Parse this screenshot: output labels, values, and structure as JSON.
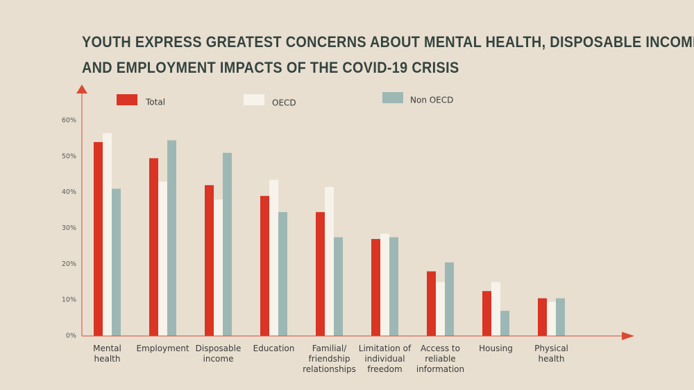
{
  "title": {
    "line1": "YOUTH EXPRESS GREATEST CONCERNS ABOUT MENTAL HEALTH, DISPOSABLE INCOME",
    "line2": "AND EMPLOYMENT IMPACTS OF THE COVID-19 CRISIS"
  },
  "colors": {
    "background": "#e8dfd0",
    "total": "#d93424",
    "oecd": "#f7f3ea",
    "non_oecd": "#9db8b4",
    "axis": "#d94a36"
  },
  "chart_data": {
    "type": "bar",
    "title": "YOUTH EXPRESS GREATEST CONCERNS ABOUT MENTAL HEALTH, DISPOSABLE INCOME AND EMPLOYMENT IMPACTS OF THE COVID-19 CRISIS",
    "xlabel": "",
    "ylabel": "",
    "ylim": [
      0,
      60
    ],
    "yticks": [
      0,
      10,
      20,
      30,
      40,
      50,
      60
    ],
    "ytick_labels": [
      "0%",
      "10%",
      "20%",
      "30%",
      "40%",
      "50%",
      "60%"
    ],
    "categories": [
      [
        "Mental",
        "health"
      ],
      [
        "Employment"
      ],
      [
        "Disposable",
        "income"
      ],
      [
        "Education"
      ],
      [
        "Familial/",
        "friendship",
        "relationships"
      ],
      [
        "Limitation of",
        "individual",
        "freedom"
      ],
      [
        "Access to",
        "reliable",
        "information"
      ],
      [
        "Housing"
      ],
      [
        "Physical",
        "health"
      ]
    ],
    "series": [
      {
        "name": "Total",
        "color": "#d93424",
        "values": [
          54,
          49.5,
          42,
          39,
          34.5,
          27,
          18,
          12.5,
          10.5
        ]
      },
      {
        "name": "OECD",
        "color": "#f7f3ea",
        "values": [
          56.5,
          43,
          38,
          43.5,
          41.5,
          28.5,
          15,
          15,
          9.5
        ]
      },
      {
        "name": "Non OECD",
        "color": "#9db8b4",
        "values": [
          41,
          54.5,
          51,
          34.5,
          27.5,
          27.5,
          20.5,
          7,
          10.5
        ]
      }
    ],
    "legend": "top"
  }
}
